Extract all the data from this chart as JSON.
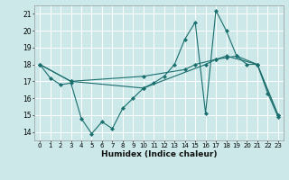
{
  "xlabel": "Humidex (Indice chaleur)",
  "bg_color": "#cce8e8",
  "grid_color": "#ffffff",
  "line_color": "#1a6e6e",
  "xlim": [
    -0.5,
    23.5
  ],
  "ylim": [
    13.5,
    21.5
  ],
  "yticks": [
    14,
    15,
    16,
    17,
    18,
    19,
    20,
    21
  ],
  "xticks": [
    0,
    1,
    2,
    3,
    4,
    5,
    6,
    7,
    8,
    9,
    10,
    11,
    12,
    13,
    14,
    15,
    16,
    17,
    18,
    19,
    20,
    21,
    22,
    23
  ],
  "series1_x": [
    0,
    1,
    2,
    3,
    4,
    5,
    6,
    7,
    8,
    9,
    10,
    11,
    12,
    13,
    14,
    15,
    16,
    17,
    18,
    19,
    20,
    21,
    22,
    23
  ],
  "series1_y": [
    18.0,
    17.2,
    16.8,
    16.9,
    14.8,
    13.9,
    14.6,
    14.2,
    15.4,
    16.0,
    16.6,
    16.9,
    17.3,
    18.0,
    19.5,
    20.5,
    15.1,
    21.2,
    20.0,
    18.5,
    18.0,
    18.0,
    16.3,
    14.9
  ],
  "series2_x": [
    0,
    3,
    10,
    14,
    15,
    17,
    18,
    19,
    21,
    23
  ],
  "series2_y": [
    18.0,
    17.0,
    17.3,
    17.7,
    18.0,
    18.3,
    18.4,
    18.5,
    18.0,
    15.0
  ],
  "series3_x": [
    0,
    3,
    10,
    16,
    17,
    18,
    21,
    23
  ],
  "series3_y": [
    18.0,
    17.0,
    16.6,
    18.0,
    18.3,
    18.5,
    18.0,
    15.0
  ]
}
